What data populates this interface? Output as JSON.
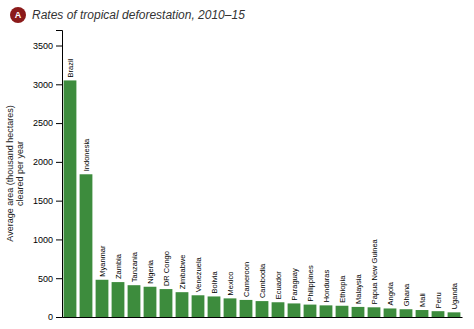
{
  "chart_data": {
    "type": "bar",
    "title": "Rates of tropical deforestation, 2010–15",
    "y_label": "Average area (thousand hectares)\ncleared per year",
    "annotations": [
      "A"
    ],
    "categories": [
      "Brazil",
      "Indonesia",
      "Myanmar",
      "Zambia",
      "Tanzania",
      "Nigeria",
      "DR Congo",
      "Zimbabwe",
      "Venezuela",
      "Bolivia",
      "Mexico",
      "Cameroon",
      "Cambodia",
      "Ecuador",
      "Paraguay",
      "Philippines",
      "Honduras",
      "Ethiopia",
      "Malaysia",
      "Papua New Guinea",
      "Angola",
      "Ghana",
      "Mali",
      "Peru",
      "Uganda"
    ],
    "values": [
      3050,
      1840,
      480,
      450,
      410,
      390,
      360,
      320,
      280,
      265,
      240,
      220,
      205,
      190,
      175,
      160,
      150,
      145,
      130,
      125,
      110,
      100,
      90,
      75,
      60
    ],
    "color": "#3d8c3d",
    "ylim": [
      0,
      3700
    ],
    "yticks": [
      0,
      500,
      1000,
      1500,
      2000,
      2500,
      3000,
      3500
    ],
    "tick_labels": "y",
    "grid": false
  }
}
